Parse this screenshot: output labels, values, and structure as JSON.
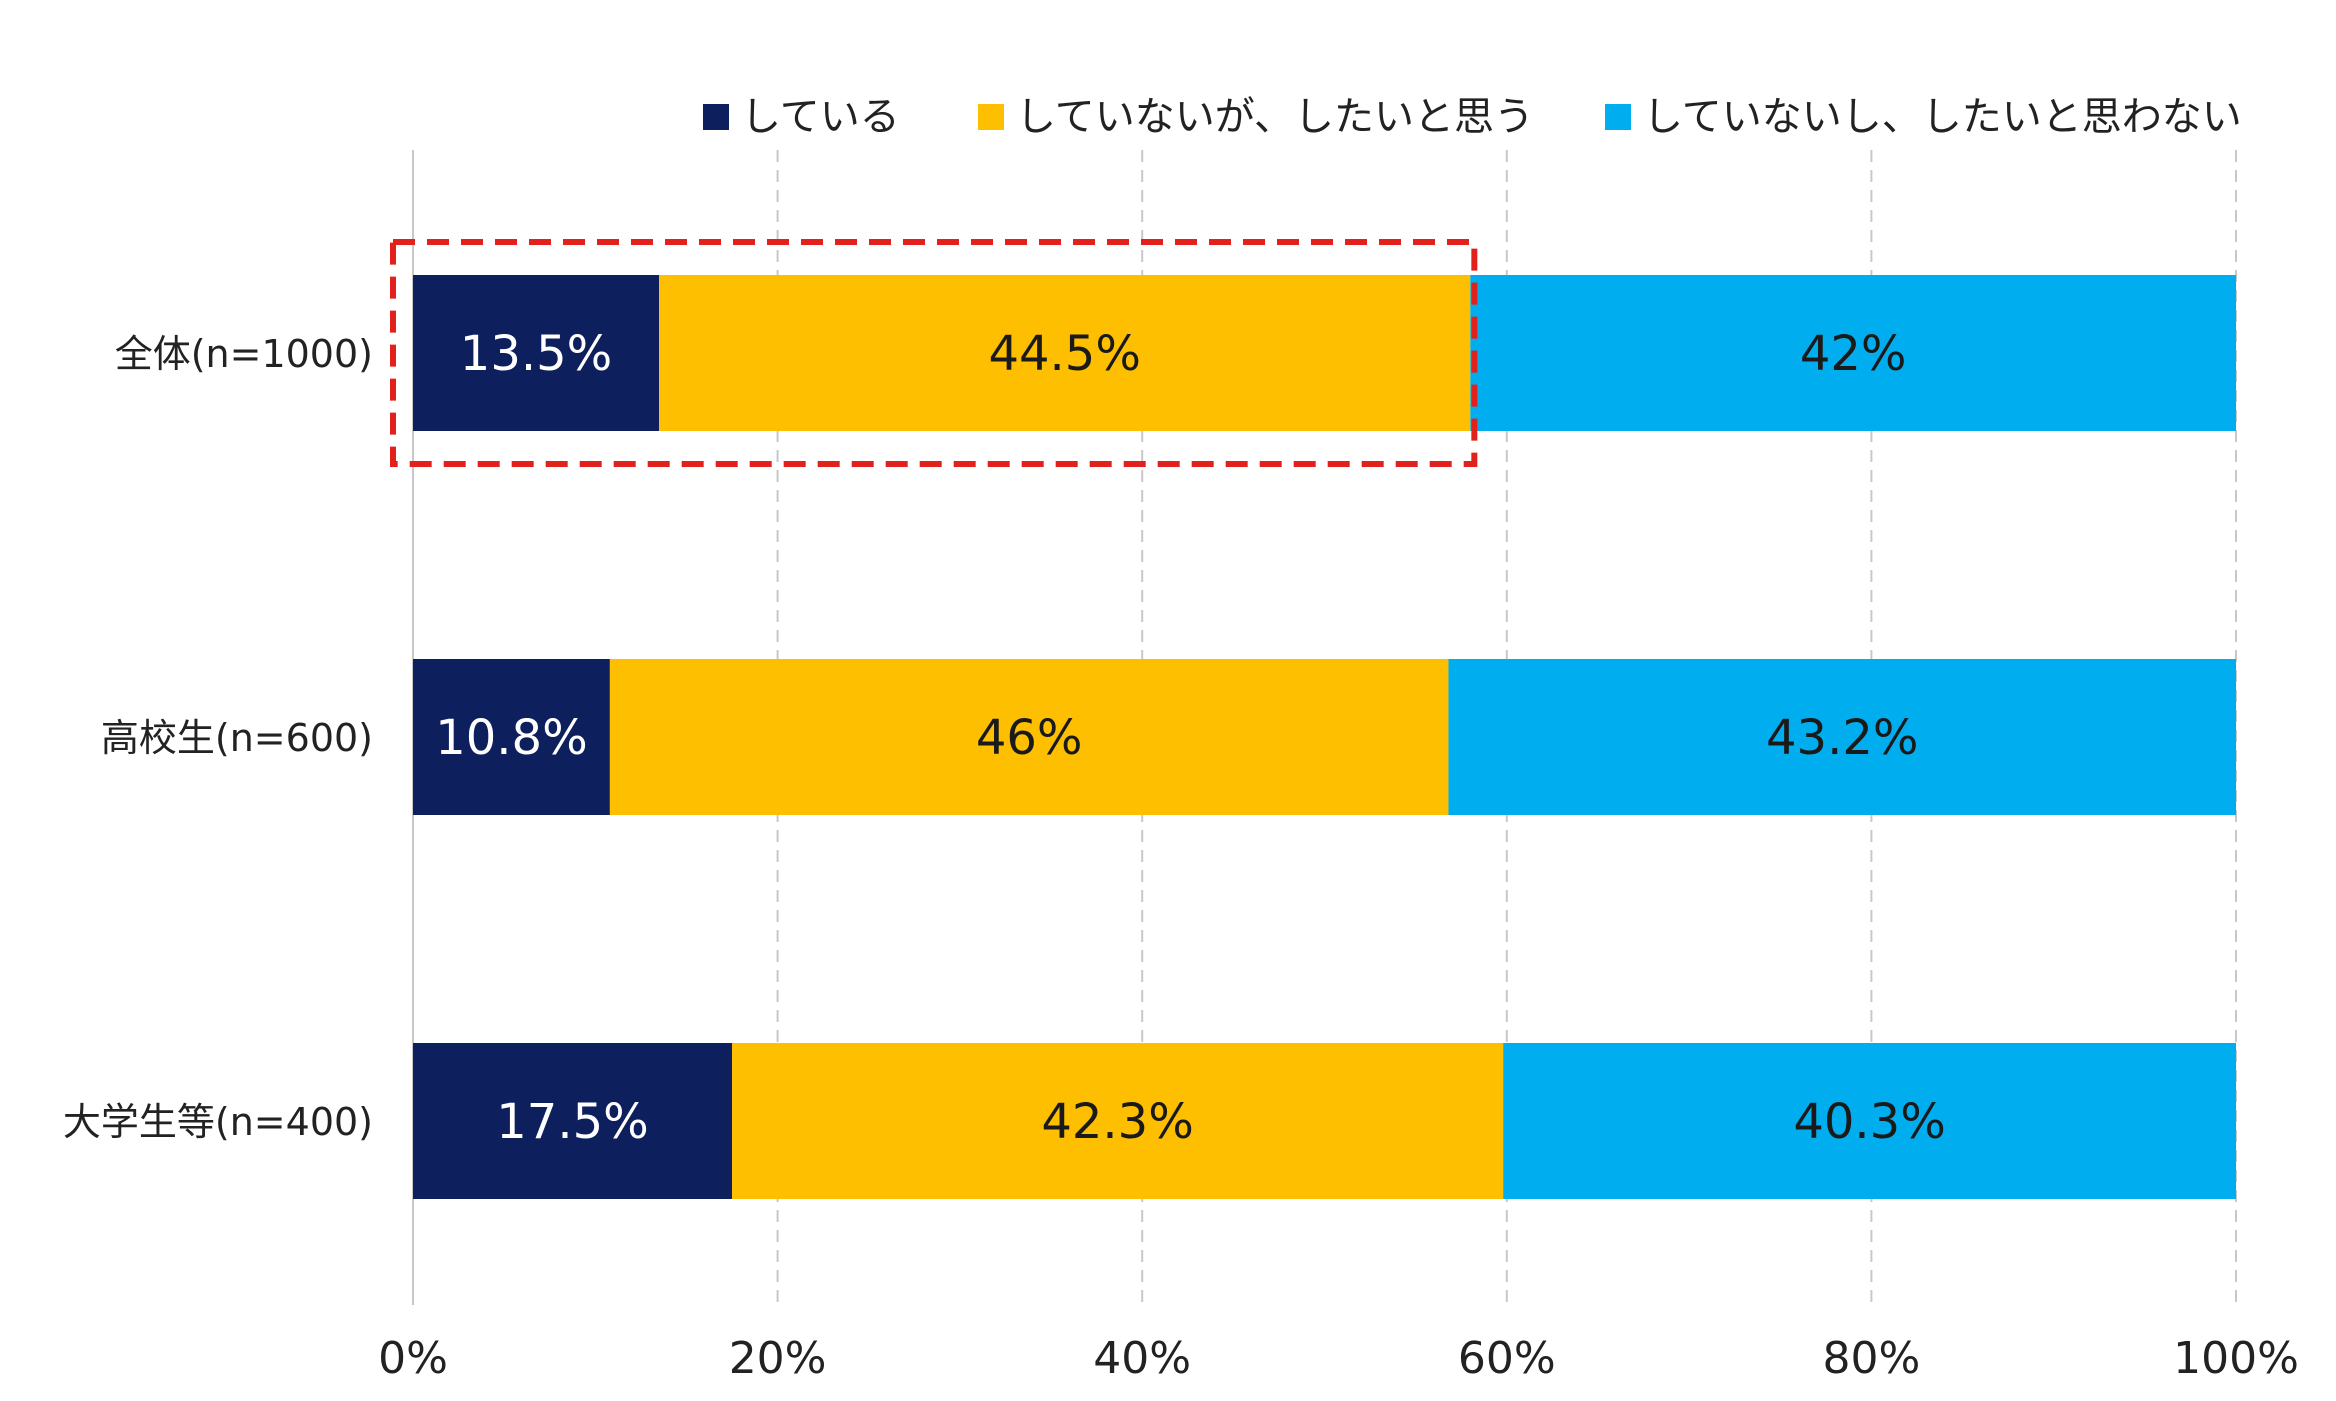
{
  "chart_data": {
    "type": "bar",
    "orientation": "horizontal",
    "stacked": true,
    "percent_stacked": true,
    "categories": [
      "全体(n=1000)",
      "高校生(n=600)",
      "大学生等(n=400)"
    ],
    "series": [
      {
        "name": "している",
        "color": "#0d1f5c",
        "label_color": "#ffffff",
        "values": [
          13.5,
          10.8,
          17.5
        ],
        "labels": [
          "13.5%",
          "10.8%",
          "17.5%"
        ]
      },
      {
        "name": "していないが、したいと思う",
        "color": "#fdbf00",
        "label_color": "#1a1a1a",
        "values": [
          44.5,
          46,
          42.3
        ],
        "labels": [
          "44.5%",
          "46%",
          "42.3%"
        ]
      },
      {
        "name": "していないし、したいと思わない",
        "color": "#00aeef",
        "label_color": "#1a1a1a",
        "values": [
          42,
          43.2,
          40.3
        ],
        "labels": [
          "42%",
          "43.2%",
          "40.3%"
        ]
      }
    ],
    "x_ticks": [
      "0%",
      "20%",
      "40%",
      "60%",
      "80%",
      "100%"
    ],
    "x_tick_values": [
      0,
      20,
      40,
      60,
      80,
      100
    ],
    "xlim": [
      0,
      100
    ],
    "grid": true,
    "legend_position": "top",
    "highlight": {
      "category": "全体(n=1000)",
      "from": 0,
      "to": 58,
      "color": "#e3211c"
    }
  }
}
